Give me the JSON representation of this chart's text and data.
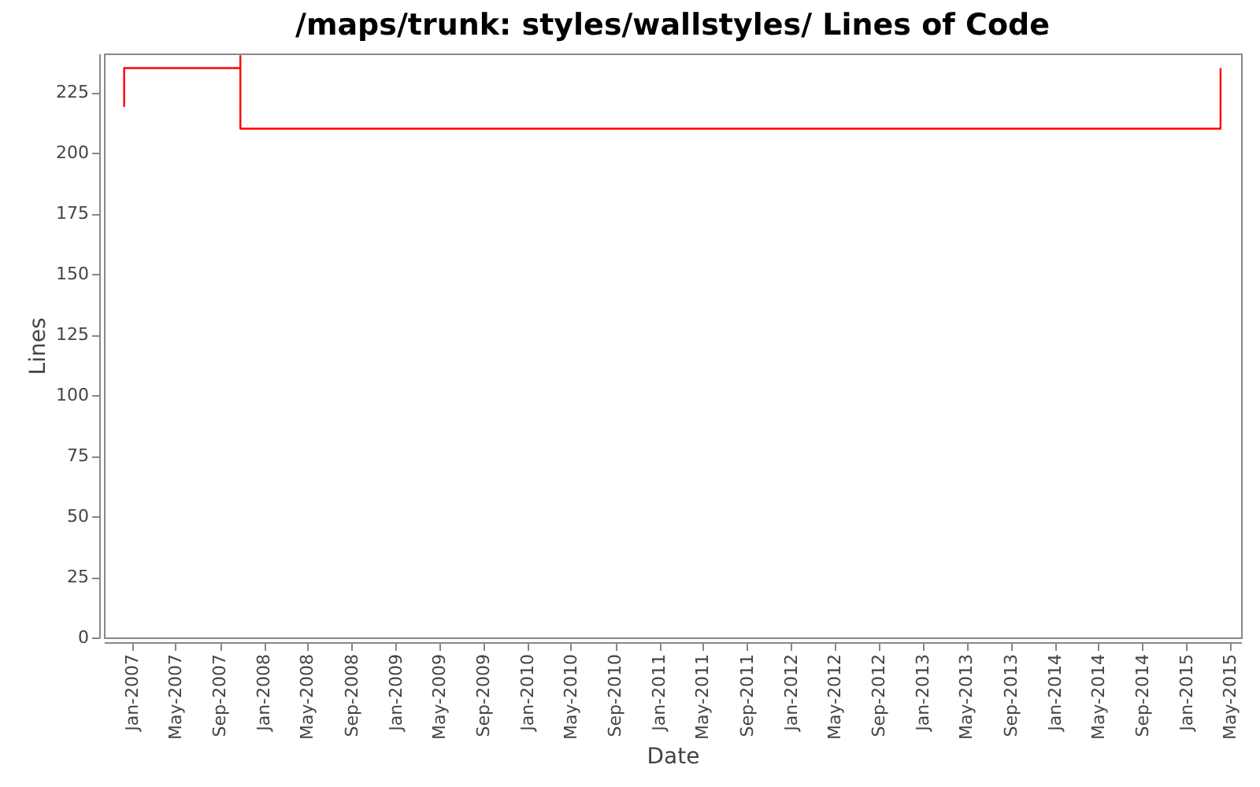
{
  "chart_data": {
    "type": "step",
    "title": "/maps/trunk: styles/wallstyles/ Lines of Code",
    "xlabel": "Date",
    "ylabel": "Lines",
    "series": [
      {
        "color": "#ff0000",
        "x": [
          "2006-12-10",
          "2006-12-10",
          "2007-10-28",
          "2007-10-28",
          "2007-10-28",
          "2015-04-05",
          "2015-04-05"
        ],
        "values": [
          219,
          235,
          235,
          240,
          210,
          210,
          235
        ]
      }
    ],
    "xlim": [
      "2006-10-15",
      "2015-06-01"
    ],
    "xticks": [
      {
        "value": "2007-01",
        "label": "Jan-2007"
      },
      {
        "value": "2007-05",
        "label": "May-2007"
      },
      {
        "value": "2007-09",
        "label": "Sep-2007"
      },
      {
        "value": "2008-01",
        "label": "Jan-2008"
      },
      {
        "value": "2008-05",
        "label": "May-2008"
      },
      {
        "value": "2008-09",
        "label": "Sep-2008"
      },
      {
        "value": "2009-01",
        "label": "Jan-2009"
      },
      {
        "value": "2009-05",
        "label": "May-2009"
      },
      {
        "value": "2009-09",
        "label": "Sep-2009"
      },
      {
        "value": "2010-01",
        "label": "Jan-2010"
      },
      {
        "value": "2010-05",
        "label": "May-2010"
      },
      {
        "value": "2010-09",
        "label": "Sep-2010"
      },
      {
        "value": "2011-01",
        "label": "Jan-2011"
      },
      {
        "value": "2011-05",
        "label": "May-2011"
      },
      {
        "value": "2011-09",
        "label": "Sep-2011"
      },
      {
        "value": "2012-01",
        "label": "Jan-2012"
      },
      {
        "value": "2012-05",
        "label": "May-2012"
      },
      {
        "value": "2012-09",
        "label": "Sep-2012"
      },
      {
        "value": "2013-01",
        "label": "Jan-2013"
      },
      {
        "value": "2013-05",
        "label": "May-2013"
      },
      {
        "value": "2013-09",
        "label": "Sep-2013"
      },
      {
        "value": "2014-01",
        "label": "Jan-2014"
      },
      {
        "value": "2014-05",
        "label": "May-2014"
      },
      {
        "value": "2014-09",
        "label": "Sep-2014"
      },
      {
        "value": "2015-01",
        "label": "Jan-2015"
      },
      {
        "value": "2015-05",
        "label": "May-2015"
      }
    ],
    "ylim": [
      0,
      241
    ],
    "yticks": [
      0,
      25,
      50,
      75,
      100,
      125,
      150,
      175,
      200,
      225
    ],
    "grid": false,
    "line_style": "solid",
    "marker": "none"
  }
}
